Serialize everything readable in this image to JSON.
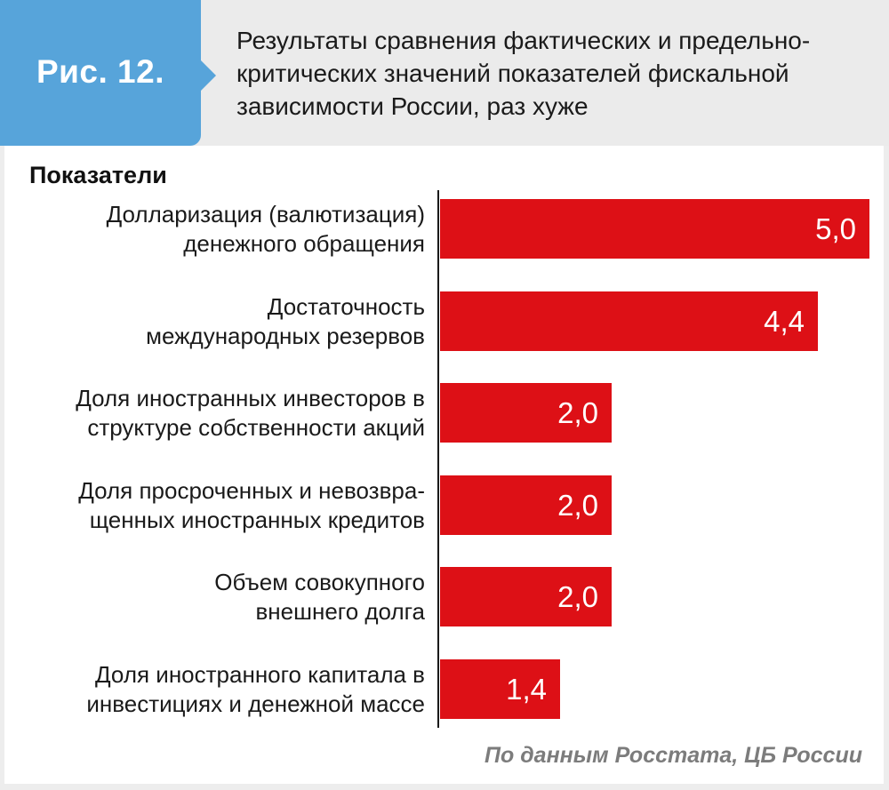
{
  "figure": {
    "label": "Рис. 12."
  },
  "header": {
    "title": "Результаты сравнения фактических и предельно-критических значений показателей фискальной зависимости России, раз хуже"
  },
  "chart": {
    "column_header": "Показатели"
  },
  "footer": {
    "source": "По данным Росстата, ЦБ России"
  },
  "colors": {
    "bar_red": "#dd1016",
    "tag_blue": "#57a4da",
    "header_gray": "#ebebeb",
    "frame_gray": "#ededed",
    "text_dark": "#1a1a1a",
    "source_gray": "#7c7c7c"
  },
  "chart_data": {
    "type": "bar",
    "orientation": "horizontal",
    "title": "Результаты сравнения фактических и предельно-критических значений показателей фискальной зависимости России, раз хуже",
    "categories": [
      "Долларизация (валютизация) денежного обращения",
      "Достаточность международных резервов",
      "Доля иностранных инвесторов в структуре собственности акций",
      "Доля просроченных и невозвращенных иностранных кредитов",
      "Объем совокупного внешнего долга",
      "Доля иностранного капитала в инвестициях и денежной массе"
    ],
    "category_lines": [
      [
        "Долларизация (валютизация)",
        "денежного обращения"
      ],
      [
        "Достаточность",
        "международных резервов"
      ],
      [
        "Доля иностранных инвесторов в",
        "структуре собственности акций"
      ],
      [
        "Доля просроченных и невозвра-",
        "щенных иностранных кредитов"
      ],
      [
        "Объем совокупного",
        "внешнего долга"
      ],
      [
        "Доля иностранного капитала в",
        "инвестициях и денежной массе"
      ]
    ],
    "values": [
      5.0,
      4.4,
      2.0,
      2.0,
      2.0,
      1.4
    ],
    "value_labels": [
      "5,0",
      "4,4",
      "2,0",
      "2,0",
      "2,0",
      "1,4"
    ],
    "xlim": [
      0,
      5
    ],
    "ylabel_header": "Показатели",
    "grid": false,
    "legend": "none",
    "bar_color": "#dd1016",
    "source": "По данным Росстата, ЦБ России"
  }
}
